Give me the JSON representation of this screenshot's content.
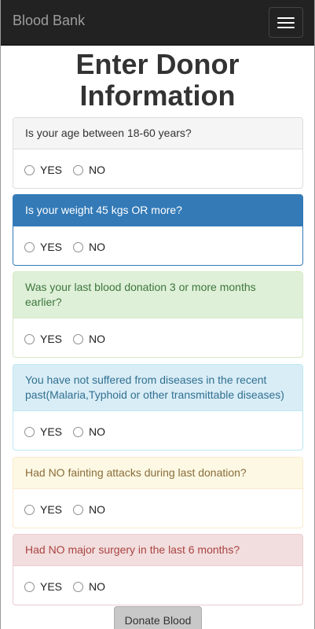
{
  "navbar": {
    "brand": "Blood Bank",
    "toggle_icon": "hamburger-menu-icon"
  },
  "page_title": "Enter Donor Information",
  "questions": [
    {
      "text": "Is your age between 18-60 years?",
      "style": "default",
      "yes": "YES",
      "no": "NO"
    },
    {
      "text": "Is your weight 45 kgs OR more?",
      "style": "primary",
      "yes": "YES",
      "no": "NO"
    },
    {
      "text": "Was your last blood donation 3 or more months earlier?",
      "style": "success",
      "yes": "YES",
      "no": "NO"
    },
    {
      "text": "You have not suffered from diseases in the recent past(Malaria,Typhoid or other transmittable diseases)",
      "style": "info",
      "yes": "YES",
      "no": "NO"
    },
    {
      "text": "Had NO fainting attacks during last donation?",
      "style": "warning",
      "yes": "YES",
      "no": "NO"
    },
    {
      "text": "Had NO major surgery in the last 6 months?",
      "style": "danger",
      "yes": "YES",
      "no": "NO"
    }
  ],
  "submit_label": "Donate Blood"
}
